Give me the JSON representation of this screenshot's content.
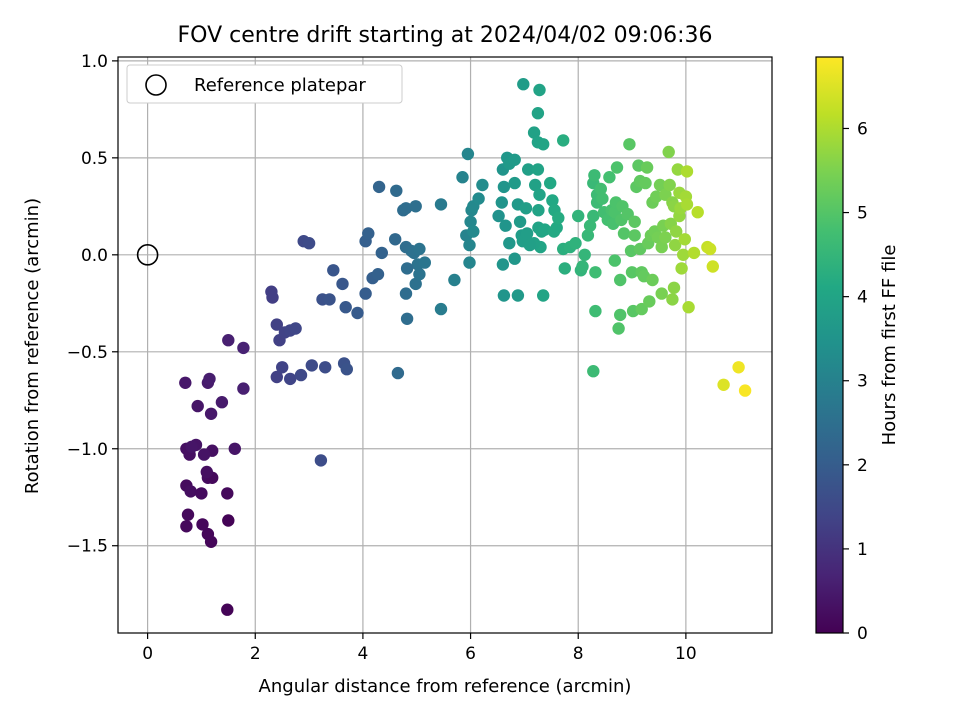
{
  "chart_data": {
    "type": "scatter",
    "title": "FOV centre drift starting at 2024/04/02 09:06:36",
    "xlabel": "Angular distance from reference (arcmin)",
    "ylabel": "Rotation from reference (arcmin)",
    "colorbar_label": "Hours from first FF file",
    "xlim": [
      -0.55,
      11.6
    ],
    "ylim": [
      -1.95,
      1.02
    ],
    "x_ticks": [
      0,
      2,
      4,
      6,
      8,
      10
    ],
    "x_tick_labels": [
      "0",
      "2",
      "4",
      "6",
      "8",
      "10"
    ],
    "y_ticks": [
      1.0,
      0.5,
      0.0,
      -0.5,
      -1.0,
      -1.5
    ],
    "y_tick_labels": [
      "1.0",
      "0.5",
      "0.0",
      "−0.5",
      "−1.0",
      "−1.5"
    ],
    "colorbar_range": [
      0,
      6.85
    ],
    "colorbar_ticks": [
      0,
      1,
      2,
      3,
      4,
      5,
      6
    ],
    "colorbar_tick_labels": [
      "0",
      "1",
      "2",
      "3",
      "4",
      "5",
      "6"
    ],
    "colormap": "viridis",
    "grid": true,
    "legend": {
      "label": "Reference platepar",
      "placement": "upper-left"
    },
    "reference_point": {
      "x": 0,
      "y": 0
    },
    "points": [
      [
        1.48,
        -1.83,
        0.05
      ],
      [
        1.18,
        -1.48,
        0.1
      ],
      [
        1.12,
        -1.44,
        0.1
      ],
      [
        1.02,
        -1.39,
        0.12
      ],
      [
        1.5,
        -1.37,
        0.05
      ],
      [
        0.72,
        -1.4,
        0.15
      ],
      [
        0.75,
        -1.34,
        0.15
      ],
      [
        0.72,
        -1.19,
        0.2
      ],
      [
        0.8,
        -1.22,
        0.25
      ],
      [
        1.0,
        -1.23,
        0.2
      ],
      [
        1.48,
        -1.23,
        0.15
      ],
      [
        1.12,
        -1.15,
        0.2
      ],
      [
        1.2,
        -1.15,
        0.15
      ],
      [
        1.1,
        -1.12,
        0.25
      ],
      [
        1.2,
        -1.01,
        0.3
      ],
      [
        0.72,
        -1.0,
        0.3
      ],
      [
        0.78,
        -1.03,
        0.3
      ],
      [
        0.9,
        -0.98,
        0.35
      ],
      [
        1.05,
        -1.03,
        0.35
      ],
      [
        1.62,
        -1.0,
        0.4
      ],
      [
        0.82,
        -0.99,
        0.4
      ],
      [
        0.93,
        -0.78,
        0.4
      ],
      [
        1.18,
        -0.82,
        0.45
      ],
      [
        1.38,
        -0.76,
        0.5
      ],
      [
        0.7,
        -0.66,
        0.45
      ],
      [
        1.12,
        -0.66,
        0.5
      ],
      [
        1.15,
        -0.64,
        0.55
      ],
      [
        1.78,
        -0.69,
        0.6
      ],
      [
        1.5,
        -0.44,
        0.6
      ],
      [
        1.78,
        -0.48,
        0.65
      ],
      [
        2.4,
        -0.63,
        1.3
      ],
      [
        2.5,
        -0.58,
        1.35
      ],
      [
        2.65,
        -0.64,
        1.4
      ],
      [
        2.85,
        -0.62,
        1.5
      ],
      [
        3.05,
        -0.57,
        1.55
      ],
      [
        3.3,
        -0.58,
        1.6
      ],
      [
        3.65,
        -0.56,
        1.7
      ],
      [
        3.7,
        -0.59,
        1.75
      ],
      [
        3.22,
        -1.06,
        1.6
      ],
      [
        2.4,
        -0.36,
        1.3
      ],
      [
        2.45,
        -0.44,
        1.3
      ],
      [
        2.55,
        -0.4,
        1.35
      ],
      [
        2.65,
        -0.39,
        1.4
      ],
      [
        2.75,
        -0.38,
        1.45
      ],
      [
        2.3,
        -0.19,
        1.25
      ],
      [
        2.32,
        -0.22,
        1.25
      ],
      [
        2.9,
        0.07,
        1.5
      ],
      [
        3.0,
        0.06,
        1.55
      ],
      [
        3.25,
        -0.23,
        1.7
      ],
      [
        3.38,
        -0.23,
        1.75
      ],
      [
        3.45,
        -0.08,
        1.8
      ],
      [
        3.62,
        -0.15,
        1.85
      ],
      [
        3.68,
        -0.27,
        1.9
      ],
      [
        3.9,
        -0.3,
        1.95
      ],
      [
        4.05,
        -0.2,
        2.0
      ],
      [
        4.18,
        -0.12,
        2.05
      ],
      [
        4.28,
        -0.1,
        2.1
      ],
      [
        4.35,
        0.01,
        2.15
      ],
      [
        4.05,
        0.07,
        2.05
      ],
      [
        4.1,
        0.11,
        2.1
      ],
      [
        4.3,
        0.35,
        2.2
      ],
      [
        4.62,
        0.33,
        2.35
      ],
      [
        4.65,
        -0.61,
        2.35
      ],
      [
        4.75,
        0.23,
        2.4
      ],
      [
        4.8,
        0.24,
        2.45
      ],
      [
        4.98,
        0.25,
        2.5
      ],
      [
        4.8,
        0.04,
        2.45
      ],
      [
        4.9,
        0.02,
        2.5
      ],
      [
        4.95,
        0.01,
        2.55
      ],
      [
        5.05,
        0.03,
        2.6
      ],
      [
        4.6,
        0.08,
        2.3
      ],
      [
        5.02,
        -0.05,
        2.6
      ],
      [
        5.15,
        -0.04,
        2.65
      ],
      [
        4.82,
        -0.07,
        2.45
      ],
      [
        4.8,
        -0.2,
        2.45
      ],
      [
        4.98,
        -0.15,
        2.55
      ],
      [
        5.05,
        -0.1,
        2.6
      ],
      [
        4.82,
        -0.33,
        2.45
      ],
      [
        5.45,
        0.26,
        2.8
      ],
      [
        5.45,
        -0.28,
        2.85
      ],
      [
        5.7,
        -0.13,
        2.95
      ],
      [
        5.85,
        0.4,
        3.05
      ],
      [
        5.95,
        0.52,
        3.1
      ],
      [
        5.92,
        0.1,
        3.05
      ],
      [
        5.98,
        0.05,
        3.1
      ],
      [
        6.0,
        0.17,
        3.15
      ],
      [
        6.02,
        0.23,
        3.15
      ],
      [
        6.05,
        0.25,
        3.2
      ],
      [
        6.15,
        0.29,
        3.25
      ],
      [
        6.22,
        0.36,
        3.3
      ],
      [
        5.98,
        -0.04,
        3.1
      ],
      [
        6.05,
        0.12,
        3.2
      ],
      [
        6.52,
        0.2,
        3.45
      ],
      [
        6.58,
        0.27,
        3.5
      ],
      [
        6.65,
        0.15,
        3.55
      ],
      [
        6.6,
        -0.05,
        3.55
      ],
      [
        6.62,
        -0.21,
        3.55
      ],
      [
        6.88,
        -0.21,
        3.65
      ],
      [
        6.82,
        -0.02,
        3.6
      ],
      [
        6.72,
        0.06,
        3.6
      ],
      [
        6.62,
        0.35,
        3.55
      ],
      [
        6.6,
        0.44,
        3.5
      ],
      [
        6.68,
        0.5,
        3.6
      ],
      [
        6.72,
        0.47,
        3.65
      ],
      [
        6.82,
        0.49,
        3.7
      ],
      [
        6.82,
        0.37,
        3.7
      ],
      [
        6.88,
        0.26,
        3.65
      ],
      [
        6.92,
        0.17,
        3.7
      ],
      [
        6.95,
        0.1,
        3.75
      ],
      [
        6.97,
        0.07,
        3.8
      ],
      [
        7.05,
        0.11,
        3.8
      ],
      [
        7.03,
        0.24,
        3.8
      ],
      [
        7.07,
        0.44,
        3.85
      ],
      [
        6.98,
        0.88,
        3.75
      ],
      [
        7.28,
        0.85,
        3.95
      ],
      [
        7.18,
        0.63,
        3.9
      ],
      [
        7.25,
        0.73,
        3.95
      ],
      [
        7.25,
        0.58,
        3.95
      ],
      [
        7.35,
        0.57,
        4.0
      ],
      [
        7.25,
        0.44,
        3.95
      ],
      [
        7.2,
        0.36,
        3.9
      ],
      [
        7.28,
        0.31,
        3.95
      ],
      [
        7.26,
        0.23,
        3.95
      ],
      [
        7.26,
        0.14,
        3.95
      ],
      [
        7.32,
        0.12,
        4.0
      ],
      [
        7.38,
        0.13,
        4.05
      ],
      [
        7.3,
        0.04,
        4.0
      ],
      [
        7.18,
        0.06,
        3.9
      ],
      [
        7.1,
        0.05,
        3.85
      ],
      [
        7.35,
        -0.21,
        4.0
      ],
      [
        7.48,
        0.37,
        4.1
      ],
      [
        7.52,
        0.28,
        4.1
      ],
      [
        7.56,
        0.23,
        4.15
      ],
      [
        7.6,
        0.14,
        4.15
      ],
      [
        7.55,
        0.12,
        4.15
      ],
      [
        7.63,
        0.19,
        4.2
      ],
      [
        7.72,
        0.59,
        4.25
      ],
      [
        7.72,
        0.03,
        4.3
      ],
      [
        7.75,
        -0.07,
        4.3
      ],
      [
        7.85,
        0.04,
        4.35
      ],
      [
        7.95,
        0.06,
        4.4
      ],
      [
        8.0,
        0.2,
        4.45
      ],
      [
        8.05,
        -0.08,
        4.45
      ],
      [
        8.08,
        -0.06,
        4.5
      ],
      [
        8.12,
        0.0,
        4.5
      ],
      [
        8.18,
        0.1,
        4.55
      ],
      [
        8.22,
        0.15,
        4.6
      ],
      [
        8.28,
        0.2,
        4.6
      ],
      [
        8.28,
        0.37,
        4.6
      ],
      [
        8.3,
        0.41,
        4.65
      ],
      [
        8.35,
        0.31,
        4.65
      ],
      [
        8.35,
        0.27,
        4.65
      ],
      [
        8.32,
        -0.09,
        4.7
      ],
      [
        8.28,
        -0.6,
        4.65
      ],
      [
        8.32,
        -0.29,
        4.7
      ],
      [
        8.42,
        0.34,
        4.75
      ],
      [
        8.45,
        0.29,
        4.75
      ],
      [
        8.48,
        0.22,
        4.75
      ],
      [
        8.55,
        0.18,
        4.8
      ],
      [
        8.58,
        0.4,
        4.8
      ],
      [
        8.62,
        0.23,
        4.85
      ],
      [
        8.65,
        0.16,
        4.85
      ],
      [
        8.68,
        0.22,
        4.9
      ],
      [
        8.7,
        0.27,
        4.9
      ],
      [
        8.72,
        0.45,
        4.9
      ],
      [
        8.68,
        -0.03,
        4.9
      ],
      [
        8.78,
        -0.13,
        4.95
      ],
      [
        8.78,
        -0.31,
        4.95
      ],
      [
        8.75,
        -0.38,
        4.95
      ],
      [
        8.8,
        0.18,
        4.95
      ],
      [
        8.82,
        0.25,
        4.95
      ],
      [
        8.85,
        0.11,
        5.0
      ],
      [
        8.92,
        0.21,
        5.0
      ],
      [
        8.95,
        0.57,
        5.05
      ],
      [
        8.98,
        0.02,
        5.05
      ],
      [
        9.0,
        -0.09,
        5.05
      ],
      [
        9.02,
        -0.29,
        5.05
      ],
      [
        9.05,
        0.1,
        5.1
      ],
      [
        9.05,
        0.17,
        5.1
      ],
      [
        9.08,
        0.35,
        5.1
      ],
      [
        9.12,
        0.46,
        5.1
      ],
      [
        9.15,
        0.38,
        5.15
      ],
      [
        9.15,
        0.03,
        5.15
      ],
      [
        9.18,
        -0.09,
        5.15
      ],
      [
        9.18,
        -0.28,
        5.2
      ],
      [
        9.22,
        -0.11,
        5.2
      ],
      [
        9.25,
        0.37,
        5.2
      ],
      [
        9.28,
        0.45,
        5.25
      ],
      [
        9.3,
        0.06,
        5.25
      ],
      [
        9.32,
        -0.24,
        5.25
      ],
      [
        9.35,
        0.1,
        5.3
      ],
      [
        9.38,
        -0.13,
        5.3
      ],
      [
        9.38,
        0.27,
        5.3
      ],
      [
        9.42,
        0.12,
        5.35
      ],
      [
        9.45,
        0.3,
        5.35
      ],
      [
        9.48,
        0.09,
        5.4
      ],
      [
        9.52,
        0.36,
        5.4
      ],
      [
        9.55,
        0.04,
        5.45
      ],
      [
        9.55,
        -0.2,
        5.45
      ],
      [
        9.58,
        0.15,
        5.45
      ],
      [
        9.62,
        0.09,
        5.5
      ],
      [
        9.62,
        0.31,
        5.5
      ],
      [
        9.68,
        0.53,
        5.55
      ],
      [
        9.7,
        0.36,
        5.55
      ],
      [
        9.72,
        0.16,
        5.6
      ],
      [
        9.75,
        0.27,
        5.6
      ],
      [
        9.78,
        0.25,
        5.65
      ],
      [
        9.78,
        -0.17,
        5.65
      ],
      [
        9.75,
        -0.23,
        5.65
      ],
      [
        9.8,
        0.05,
        5.7
      ],
      [
        9.82,
        0.12,
        5.7
      ],
      [
        9.85,
        0.44,
        5.75
      ],
      [
        9.88,
        0.2,
        5.75
      ],
      [
        9.88,
        0.32,
        5.8
      ],
      [
        9.9,
        0.24,
        5.8
      ],
      [
        9.92,
        -0.07,
        5.85
      ],
      [
        9.95,
        0.0,
        5.85
      ],
      [
        9.98,
        0.08,
        5.9
      ],
      [
        10.0,
        0.3,
        5.9
      ],
      [
        10.02,
        0.26,
        5.95
      ],
      [
        10.05,
        -0.27,
        5.95
      ],
      [
        10.02,
        0.43,
        6.0
      ],
      [
        10.15,
        0.01,
        6.05
      ],
      [
        10.22,
        0.22,
        6.1
      ],
      [
        10.4,
        0.04,
        6.25
      ],
      [
        10.5,
        -0.06,
        6.35
      ],
      [
        10.45,
        0.03,
        6.3
      ],
      [
        10.7,
        -0.67,
        6.5
      ],
      [
        10.98,
        -0.58,
        6.7
      ],
      [
        11.1,
        -0.7,
        6.8
      ]
    ]
  }
}
